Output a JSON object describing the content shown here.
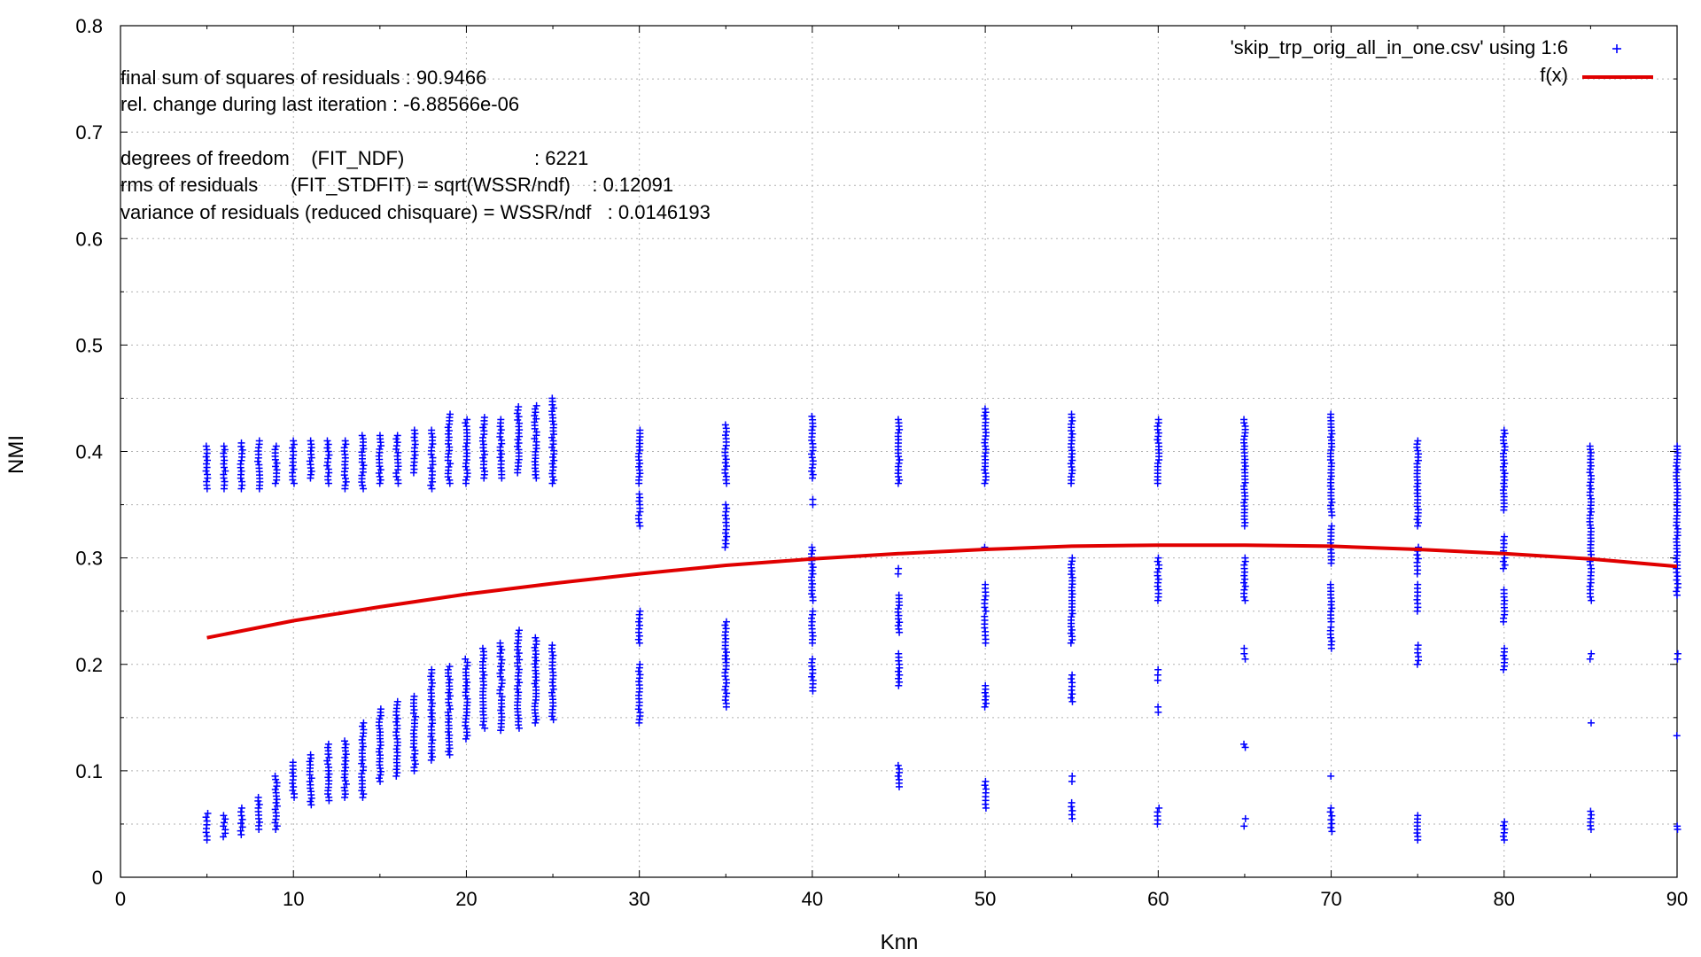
{
  "chart_data": {
    "type": "scatter",
    "xlabel": "Knn",
    "ylabel": "NMI",
    "xlim": [
      0,
      90
    ],
    "ylim": [
      0,
      0.8
    ],
    "xticks": [
      "0",
      "10",
      "20",
      "30",
      "40",
      "50",
      "60",
      "70",
      "80",
      "90"
    ],
    "yticks": [
      "0",
      "0.1",
      "0.2",
      "0.3",
      "0.4",
      "0.5",
      "0.6",
      "0.7",
      "0.8"
    ],
    "grid": true,
    "legend_position": "top-right",
    "legend": [
      {
        "label": "'skip_trp_orig_all_in_one.csv' using 1:6",
        "color": "#0000ff",
        "marker": "+"
      },
      {
        "label": "f(x)",
        "color": "#e00000",
        "marker": "line"
      }
    ],
    "annotations": [
      "final sum of squares of residuals : 90.9466",
      "rel. change during last iteration : -6.88566e-06",
      "degrees of freedom    (FIT_NDF)                        : 6221",
      "rms of residuals      (FIT_STDFIT) = sqrt(WSSR/ndf)    : 0.12091",
      "variance of residuals (reduced chisquare) = WSSR/ndf   : 0.0146193"
    ],
    "fit_curve": {
      "name": "f(x)",
      "color": "#e00000",
      "x": [
        5,
        10,
        15,
        20,
        25,
        30,
        35,
        40,
        45,
        50,
        55,
        60,
        65,
        70,
        75,
        80,
        85,
        90
      ],
      "y": [
        0.225,
        0.241,
        0.254,
        0.266,
        0.276,
        0.285,
        0.293,
        0.299,
        0.304,
        0.308,
        0.311,
        0.312,
        0.312,
        0.311,
        0.308,
        0.304,
        0.299,
        0.292
      ]
    },
    "scatter_clusters": [
      {
        "x": 5,
        "ranges": [
          [
            0.035,
            0.06
          ],
          [
            0.365,
            0.405
          ]
        ]
      },
      {
        "x": 6,
        "ranges": [
          [
            0.038,
            0.058
          ],
          [
            0.365,
            0.405
          ]
        ]
      },
      {
        "x": 7,
        "ranges": [
          [
            0.04,
            0.065
          ],
          [
            0.365,
            0.408
          ]
        ]
      },
      {
        "x": 8,
        "ranges": [
          [
            0.045,
            0.075
          ],
          [
            0.365,
            0.41
          ]
        ]
      },
      {
        "x": 9,
        "ranges": [
          [
            0.045,
            0.095
          ],
          [
            0.37,
            0.405
          ]
        ]
      },
      {
        "x": 10,
        "ranges": [
          [
            0.075,
            0.108
          ],
          [
            0.37,
            0.41
          ]
        ]
      },
      {
        "x": 11,
        "ranges": [
          [
            0.068,
            0.115
          ],
          [
            0.375,
            0.41
          ]
        ]
      },
      {
        "x": 12,
        "ranges": [
          [
            0.072,
            0.125
          ],
          [
            0.37,
            0.41
          ]
        ]
      },
      {
        "x": 13,
        "ranges": [
          [
            0.075,
            0.128
          ],
          [
            0.365,
            0.41
          ]
        ]
      },
      {
        "x": 14,
        "ranges": [
          [
            0.075,
            0.145
          ],
          [
            0.365,
            0.415
          ]
        ]
      },
      {
        "x": 15,
        "ranges": [
          [
            0.09,
            0.158
          ],
          [
            0.37,
            0.415
          ]
        ]
      },
      {
        "x": 16,
        "ranges": [
          [
            0.095,
            0.165
          ],
          [
            0.37,
            0.415
          ]
        ]
      },
      {
        "x": 17,
        "ranges": [
          [
            0.1,
            0.17
          ],
          [
            0.38,
            0.42
          ]
        ]
      },
      {
        "x": 18,
        "ranges": [
          [
            0.11,
            0.195
          ],
          [
            0.365,
            0.42
          ]
        ]
      },
      {
        "x": 19,
        "ranges": [
          [
            0.115,
            0.198
          ],
          [
            0.37,
            0.435
          ]
        ]
      },
      {
        "x": 20,
        "ranges": [
          [
            0.13,
            0.205
          ],
          [
            0.37,
            0.43
          ]
        ]
      },
      {
        "x": 21,
        "ranges": [
          [
            0.14,
            0.215
          ],
          [
            0.375,
            0.432
          ]
        ]
      },
      {
        "x": 22,
        "ranges": [
          [
            0.138,
            0.22
          ],
          [
            0.375,
            0.43
          ]
        ]
      },
      {
        "x": 23,
        "ranges": [
          [
            0.14,
            0.232
          ],
          [
            0.38,
            0.442
          ]
        ]
      },
      {
        "x": 24,
        "ranges": [
          [
            0.145,
            0.225
          ],
          [
            0.375,
            0.443
          ]
        ]
      },
      {
        "x": 25,
        "ranges": [
          [
            0.148,
            0.218
          ],
          [
            0.37,
            0.45
          ]
        ]
      },
      {
        "x": 30,
        "ranges": [
          [
            0.145,
            0.2
          ],
          [
            0.22,
            0.25
          ],
          [
            0.33,
            0.36
          ],
          [
            0.37,
            0.42
          ]
        ]
      },
      {
        "x": 35,
        "ranges": [
          [
            0.16,
            0.205
          ],
          [
            0.205,
            0.24
          ],
          [
            0.31,
            0.35
          ],
          [
            0.37,
            0.425
          ]
        ]
      },
      {
        "x": 40,
        "ranges": [
          [
            0.175,
            0.205
          ],
          [
            0.22,
            0.25
          ],
          [
            0.26,
            0.31
          ],
          [
            0.35,
            0.355
          ],
          [
            0.375,
            0.433
          ]
        ]
      },
      {
        "x": 45,
        "ranges": [
          [
            0.085,
            0.105
          ],
          [
            0.18,
            0.21
          ],
          [
            0.23,
            0.265
          ],
          [
            0.285,
            0.29
          ],
          [
            0.37,
            0.43
          ]
        ]
      },
      {
        "x": 50,
        "ranges": [
          [
            0.065,
            0.09
          ],
          [
            0.16,
            0.18
          ],
          [
            0.22,
            0.245
          ],
          [
            0.25,
            0.275
          ],
          [
            0.31,
            0.31
          ],
          [
            0.37,
            0.44
          ]
        ]
      },
      {
        "x": 55,
        "ranges": [
          [
            0.055,
            0.07
          ],
          [
            0.09,
            0.095
          ],
          [
            0.165,
            0.19
          ],
          [
            0.22,
            0.3
          ],
          [
            0.37,
            0.435
          ]
        ]
      },
      {
        "x": 60,
        "ranges": [
          [
            0.05,
            0.065
          ],
          [
            0.155,
            0.16
          ],
          [
            0.185,
            0.195
          ],
          [
            0.26,
            0.3
          ],
          [
            0.37,
            0.43
          ]
        ]
      },
      {
        "x": 65,
        "ranges": [
          [
            0.048,
            0.055
          ],
          [
            0.122,
            0.125
          ],
          [
            0.205,
            0.215
          ],
          [
            0.26,
            0.3
          ],
          [
            0.33,
            0.43
          ]
        ]
      },
      {
        "x": 70,
        "ranges": [
          [
            0.043,
            0.065
          ],
          [
            0.095,
            0.095
          ],
          [
            0.215,
            0.235
          ],
          [
            0.24,
            0.275
          ],
          [
            0.295,
            0.33
          ],
          [
            0.34,
            0.435
          ]
        ]
      },
      {
        "x": 75,
        "ranges": [
          [
            0.035,
            0.058
          ],
          [
            0.2,
            0.218
          ],
          [
            0.25,
            0.275
          ],
          [
            0.285,
            0.31
          ],
          [
            0.33,
            0.41
          ]
        ]
      },
      {
        "x": 80,
        "ranges": [
          [
            0.035,
            0.052
          ],
          [
            0.195,
            0.215
          ],
          [
            0.24,
            0.27
          ],
          [
            0.29,
            0.32
          ],
          [
            0.345,
            0.42
          ]
        ]
      },
      {
        "x": 85,
        "ranges": [
          [
            0.045,
            0.062
          ],
          [
            0.145,
            0.145
          ],
          [
            0.205,
            0.21
          ],
          [
            0.26,
            0.3
          ],
          [
            0.3,
            0.405
          ]
        ]
      },
      {
        "x": 90,
        "ranges": [
          [
            0.045,
            0.048
          ],
          [
            0.133,
            0.133
          ],
          [
            0.205,
            0.21
          ],
          [
            0.265,
            0.29
          ],
          [
            0.29,
            0.405
          ]
        ]
      }
    ]
  }
}
